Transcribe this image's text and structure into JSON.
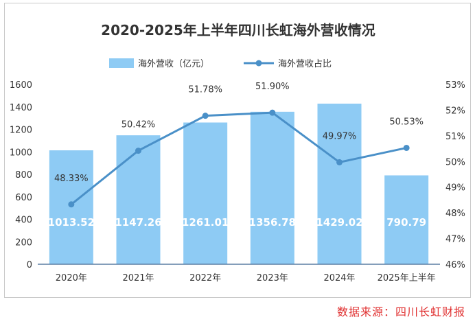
{
  "chart_data": {
    "type": "bar",
    "title": "2020-2025年上半年四川长虹海外营收情况",
    "categories": [
      "2020年",
      "2021年",
      "2022年",
      "2023年",
      "2024年",
      "2025年上半年"
    ],
    "series": [
      {
        "name": "海外营收（亿元）",
        "type": "bar",
        "axis": "left",
        "values": [
          1013.52,
          1147.26,
          1261.01,
          1356.78,
          1429.02,
          790.79
        ],
        "labels": [
          "1013.52",
          "1147.26",
          "1261.01",
          "1356.78",
          "1429.02",
          "790.79"
        ]
      },
      {
        "name": "海外营收占比",
        "type": "line",
        "axis": "right",
        "values": [
          48.33,
          50.42,
          51.78,
          51.9,
          49.97,
          50.53
        ],
        "labels": [
          "48.33%",
          "50.42%",
          "51.78%",
          "51.90%",
          "49.97%",
          "50.53%"
        ]
      }
    ],
    "y_left": {
      "ylim": [
        0,
        1600
      ],
      "ticks": [
        "0",
        "200",
        "400",
        "600",
        "800",
        "1000",
        "1200",
        "1400",
        "1600"
      ]
    },
    "y_right": {
      "ylim": [
        46,
        53
      ],
      "ticks": [
        "46%",
        "47%",
        "48%",
        "49%",
        "50%",
        "51%",
        "52%",
        "53%"
      ]
    },
    "legend_position": "top-center",
    "grid": false,
    "colors": {
      "bar": "#8ecbf4",
      "line": "#4a90c8",
      "title": "#333333",
      "axis": "#6a8aa8"
    }
  },
  "source_note": "数据来源：四川长虹财报"
}
